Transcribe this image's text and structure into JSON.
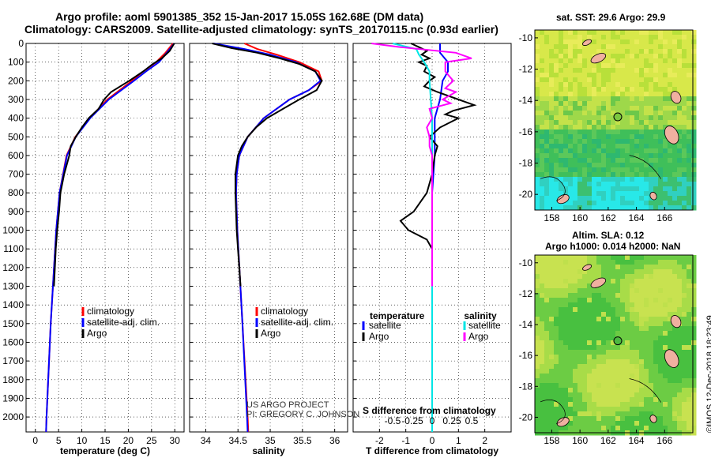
{
  "titles": {
    "line1": "Argo profile: aoml 5901385_352 15-Jan-2017 15.05S 162.68E (DM data)",
    "line2": "Climatology: CARS2009. Satellite-adjusted climatology: synTS_20170115.nc (0.93d earlier)"
  },
  "chart_data": [
    {
      "name": "temperature-profile",
      "type": "line",
      "xlabel": "temperature (deg C)",
      "ylabel": "depth",
      "xlim": [
        -2,
        32
      ],
      "ylim": [
        2080,
        0
      ],
      "xticks": [
        0,
        5,
        10,
        15,
        20,
        25,
        30
      ],
      "yticks": [
        0,
        100,
        200,
        300,
        400,
        500,
        600,
        700,
        800,
        900,
        1000,
        1100,
        1200,
        1300,
        1400,
        1500,
        1600,
        1700,
        1800,
        1900,
        2000
      ],
      "series": [
        {
          "name": "climatology",
          "color": "#ff0000",
          "depth": [
            0,
            50,
            100,
            150,
            200,
            300,
            400,
            500,
            600,
            800,
            1000,
            1500,
            2000,
            2080
          ],
          "values": [
            29.6,
            28,
            26,
            23.2,
            20.8,
            15.5,
            11.7,
            8.6,
            6.7,
            5.2,
            4.5,
            3.3,
            2.4,
            2.3
          ]
        },
        {
          "name": "satellite-adj. clim.",
          "color": "#0000ff",
          "depth": [
            0,
            50,
            100,
            150,
            200,
            300,
            400,
            500,
            600,
            800,
            1000,
            1500,
            2000,
            2080
          ],
          "values": [
            29.9,
            28.3,
            26.6,
            23.8,
            21.2,
            15.8,
            11.8,
            8.7,
            6.8,
            5.2,
            4.5,
            3.3,
            2.4,
            2.3
          ]
        },
        {
          "name": "Argo",
          "color": "#000000",
          "depth": [
            0,
            40,
            80,
            110,
            150,
            200,
            260,
            300,
            350,
            400,
            450,
            500,
            550,
            600,
            700,
            800,
            900,
            1000,
            1100,
            1200,
            1300
          ],
          "values": [
            29.9,
            28.9,
            27.2,
            25.3,
            23.2,
            20.2,
            16.3,
            14.8,
            13.6,
            11.5,
            10,
            8.7,
            7.6,
            7.3,
            6.2,
            5.4,
            5.1,
            4.7,
            4.4,
            4.2,
            4.0
          ]
        }
      ],
      "legend": [
        "climatology",
        "satellite-adj. clim.",
        "Argo"
      ]
    },
    {
      "name": "salinity-profile",
      "type": "line",
      "xlabel": "salinity",
      "xlim": [
        33.75,
        36.2
      ],
      "ylim": [
        2080,
        0
      ],
      "xticks": [
        34,
        34.5,
        35,
        35.5,
        36
      ],
      "series": [
        {
          "name": "climatology",
          "color": "#ff0000",
          "depth": [
            0,
            30,
            60,
            100,
            150,
            200,
            250,
            300,
            400,
            500,
            600,
            700,
            800,
            1000,
            1500,
            2000,
            2080
          ],
          "values": [
            34.6,
            34.8,
            35.1,
            35.45,
            35.75,
            35.8,
            35.6,
            35.3,
            34.9,
            34.65,
            34.52,
            34.48,
            34.47,
            34.49,
            34.57,
            34.65,
            34.66
          ]
        },
        {
          "name": "satellite-adj. clim.",
          "color": "#0000ff",
          "depth": [
            0,
            30,
            60,
            100,
            150,
            200,
            250,
            300,
            400,
            500,
            600,
            700,
            800,
            1000,
            1500,
            2000,
            2080
          ],
          "values": [
            34.12,
            34.6,
            35.0,
            35.4,
            35.7,
            35.78,
            35.6,
            35.3,
            34.9,
            34.65,
            34.52,
            34.48,
            34.47,
            34.49,
            34.57,
            34.64,
            34.65
          ]
        },
        {
          "name": "Argo",
          "color": "#000000",
          "depth": [
            0,
            25,
            50,
            80,
            110,
            150,
            200,
            250,
            300,
            350,
            400,
            450,
            500,
            550,
            600,
            700,
            800,
            900,
            1000,
            1100,
            1200,
            1300
          ],
          "values": [
            34.1,
            34.4,
            34.8,
            35.15,
            35.45,
            35.7,
            35.8,
            35.72,
            35.45,
            35.2,
            34.95,
            34.78,
            34.65,
            34.56,
            34.5,
            34.46,
            34.46,
            34.47,
            34.48,
            34.5,
            34.52,
            34.54
          ]
        }
      ],
      "legend": [
        "climatology",
        "satellite-adj. clim.",
        "Argo"
      ],
      "credit": [
        "US ARGO PROJECT",
        "PI: GREGORY C. JOHNSON"
      ]
    },
    {
      "name": "difference-profile",
      "type": "line",
      "xlabel": "T difference from climatology",
      "xlabel_top": "S difference from climatology",
      "xlim": [
        -3,
        3
      ],
      "ylim": [
        2080,
        0
      ],
      "xticks": [
        -2,
        -1,
        0,
        1,
        2
      ],
      "xticklabels": [
        "-2",
        "-1",
        "0",
        "1",
        "2"
      ],
      "top_ticks": [
        -1.5,
        -0.75,
        0,
        0.75,
        1.5
      ],
      "top_ticklabels": [
        "-0.5",
        "-0.25",
        "0",
        "0.25",
        "0.5"
      ],
      "series": [
        {
          "name": "temperature satellite",
          "color": "#0000ff",
          "depth": [
            0,
            50,
            100,
            150,
            200,
            300,
            400,
            500,
            600,
            800,
            1000,
            2080
          ],
          "values": [
            0.3,
            0.3,
            0.6,
            0.6,
            0.4,
            0.3,
            0.1,
            0.1,
            0.1,
            0,
            0,
            0
          ]
        },
        {
          "name": "temperature Argo",
          "color": "#000000",
          "depth": [
            0,
            20,
            40,
            60,
            80,
            100,
            120,
            150,
            180,
            200,
            230,
            260,
            300,
            330,
            360,
            380,
            400,
            450,
            500,
            550,
            600,
            700,
            800,
            900,
            950,
            1000,
            1050,
            1100,
            1200,
            1300
          ],
          "values": [
            -0.8,
            -0.5,
            -0.2,
            -0.4,
            -0.1,
            -0.5,
            -0.2,
            -0.3,
            0.1,
            -0.1,
            -0.3,
            0.2,
            1.0,
            1.6,
            0.8,
            0.5,
            1.0,
            0.3,
            -0.1,
            0.2,
            0.1,
            0.0,
            -0.2,
            -0.7,
            -1.2,
            -0.9,
            -0.2,
            0.0,
            0.0,
            0.0
          ]
        },
        {
          "name": "salinity satellite",
          "color": "#00e5e5",
          "depth": [
            0,
            30,
            60,
            100,
            150,
            200,
            300,
            400,
            500,
            600,
            800,
            1000,
            1500,
            2080
          ],
          "values": [
            -1.5,
            -0.6,
            -0.5,
            -0.3,
            -0.1,
            -0.1,
            -0.05,
            0,
            0,
            0,
            0,
            0,
            0,
            0
          ]
        },
        {
          "name": "salinity Argo",
          "color": "#ff00ff",
          "depth": [
            0,
            20,
            50,
            80,
            100,
            150,
            200,
            240,
            260,
            300,
            320,
            350,
            400,
            450,
            500,
            550,
            600,
            700,
            800,
            1000,
            1300
          ],
          "values": [
            -2.3,
            -1.2,
            0.9,
            1.5,
            0.5,
            0.5,
            0.8,
            0.5,
            0.9,
            0.4,
            0.7,
            -0.1,
            0.0,
            -0.2,
            -0.1,
            -0.1,
            0.0,
            0.0,
            0.0,
            0.0,
            0.0
          ]
        }
      ],
      "legend": {
        "temperature_header": "temperature",
        "salinity_header": "salinity",
        "temperature_items": [
          "satellite",
          "Argo"
        ],
        "salinity_items": [
          "satellite",
          "Argo"
        ]
      }
    },
    {
      "name": "sst-map",
      "type": "heatmap",
      "title": "sat. SST: 29.6 Argo: 29.9",
      "xticks": [
        158,
        160,
        162,
        164,
        166
      ],
      "yticks": [
        -10,
        -12,
        -14,
        -16,
        -18,
        -20
      ],
      "argo_position": [
        162.68,
        -15.05
      ]
    },
    {
      "name": "sla-map",
      "type": "heatmap",
      "title_line1": "Altim. SLA: 0.12",
      "title_line2": "Argo h1000: 0.014 h2000: NaN",
      "xticks": [
        158,
        160,
        162,
        164,
        166
      ],
      "yticks": [
        -10,
        -12,
        -14,
        -16,
        -18,
        -20
      ],
      "argo_position": [
        162.68,
        -15.05
      ]
    }
  ],
  "footer": "©IMOS 12-Dec-2018 18:23:49",
  "colors": {
    "climatology": "#ff0000",
    "satellite": "#0000ff",
    "argo": "#000000",
    "sal_satellite": "#00e5e5",
    "sal_argo": "#ff00ff"
  }
}
